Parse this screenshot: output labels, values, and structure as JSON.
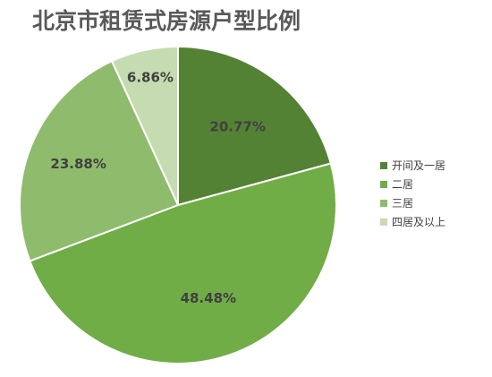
{
  "chart_data": {
    "type": "pie",
    "title": "北京市租赁式房源户型比例",
    "categories": [
      "开间及一居",
      "二居",
      "三居",
      "四居及以上"
    ],
    "values": [
      20.77,
      48.48,
      23.88,
      6.86
    ],
    "data_labels": [
      "20.77%",
      "48.48%",
      "23.88%",
      "6.86%"
    ],
    "colors": [
      "#548235",
      "#70ad47",
      "#8fbc6c",
      "#c5dcb1"
    ],
    "start_angle_deg": 0,
    "direction": "clockwise",
    "legend_position": "right"
  }
}
